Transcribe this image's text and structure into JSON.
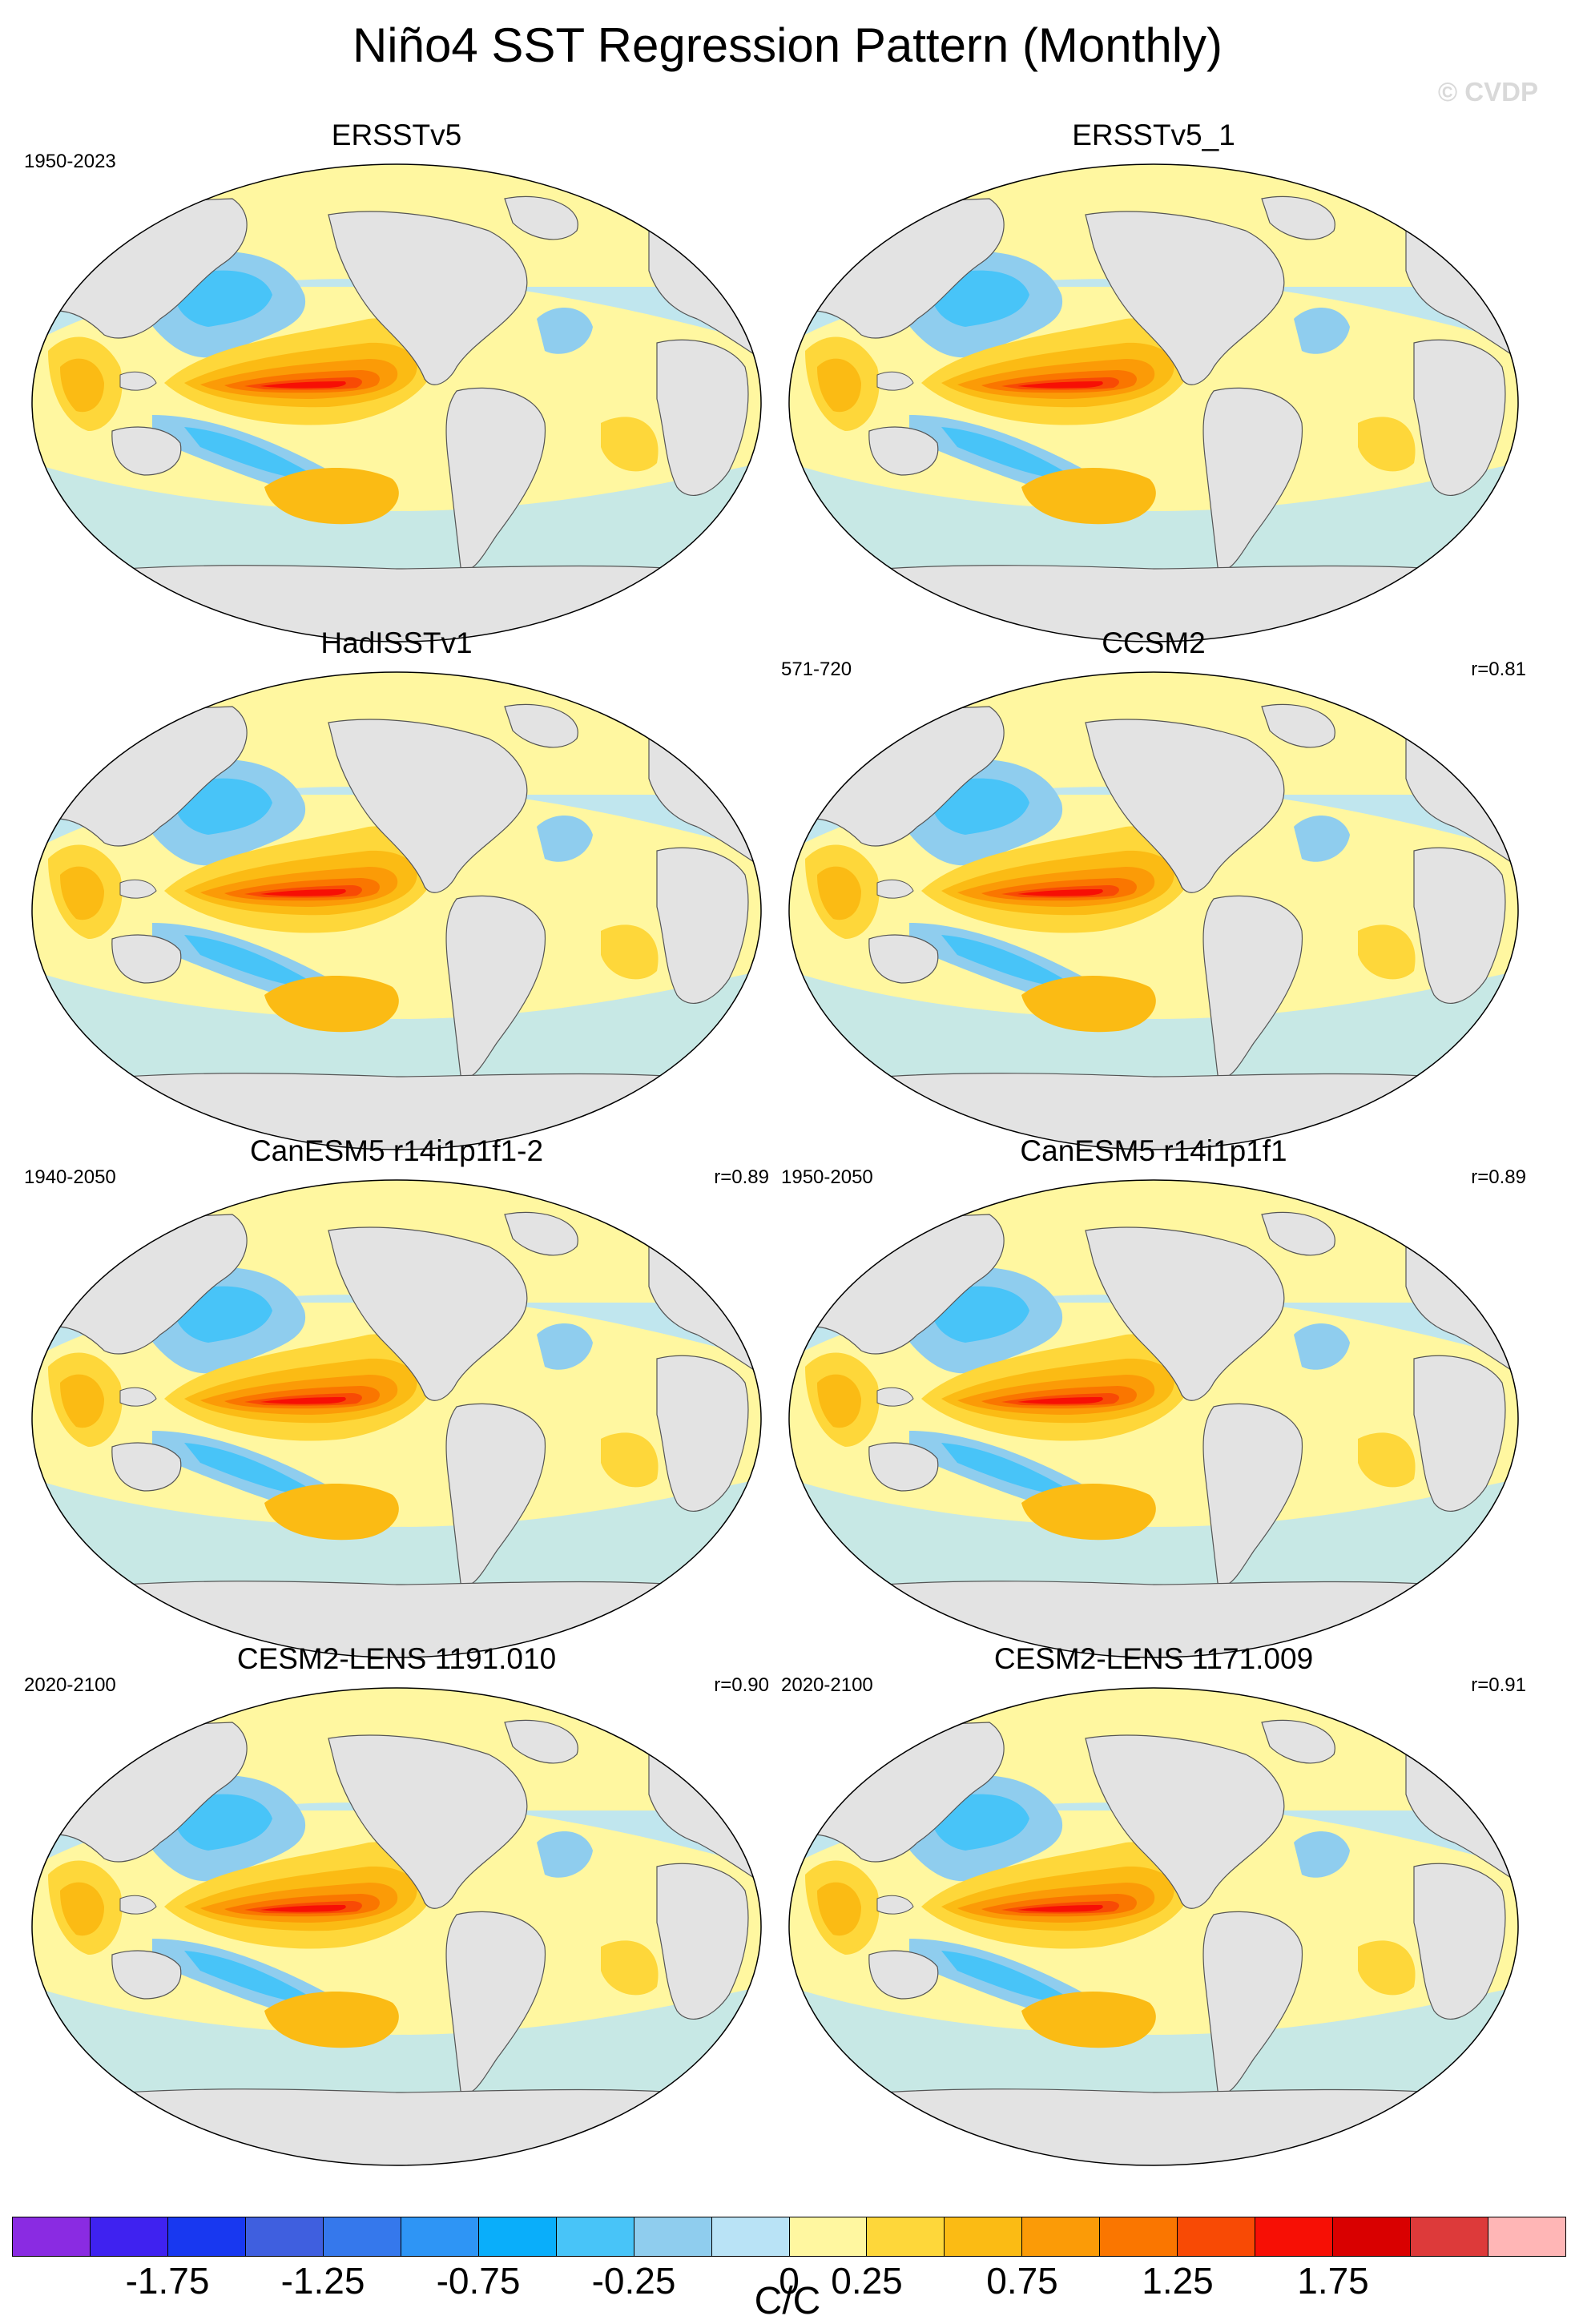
{
  "title": "Niño4 SST Regression Pattern (Monthly)",
  "copyright": "© CVDP",
  "panels": [
    {
      "name": "ERSSTv5",
      "left_label": "1950-2023",
      "right_label": ""
    },
    {
      "name": "ERSSTv5_1",
      "left_label": "",
      "right_label": ""
    },
    {
      "name": "HadISSTv1",
      "left_label": "",
      "right_label": ""
    },
    {
      "name": "CCSM2",
      "left_label": "571-720",
      "right_label": "r=0.81"
    },
    {
      "name": "CanESM5 r14i1p1f1-2",
      "left_label": "1940-2050",
      "right_label": "r=0.89"
    },
    {
      "name": "CanESM5 r14i1p1f1",
      "left_label": "1950-2050",
      "right_label": "r=0.89"
    },
    {
      "name": "CESM2-LENS 1191.010",
      "left_label": "2020-2100",
      "right_label": "r=0.90"
    },
    {
      "name": "CESM2-LENS 1171.009",
      "left_label": "2020-2100",
      "right_label": "r=0.91"
    }
  ],
  "colorbar": {
    "colors": [
      "#8a2be2",
      "#3f22f0",
      "#1838f0",
      "#3f5fdf",
      "#3578ec",
      "#2e95f5",
      "#0aaefa",
      "#48c4f8",
      "#8fcdee",
      "#b9e3f6",
      "#fff7a0",
      "#fed73a",
      "#fbbb14",
      "#fb9b07",
      "#fa7600",
      "#f84a05",
      "#f70f05",
      "#d90000",
      "#dd3a3a",
      "#ffb6b6"
    ],
    "tick_labels": [
      "-1.75",
      "-1.25",
      "-0.75",
      "-0.25",
      "0",
      "0.25",
      "0.75",
      "1.25",
      "1.75"
    ],
    "units": "C/C"
  }
}
